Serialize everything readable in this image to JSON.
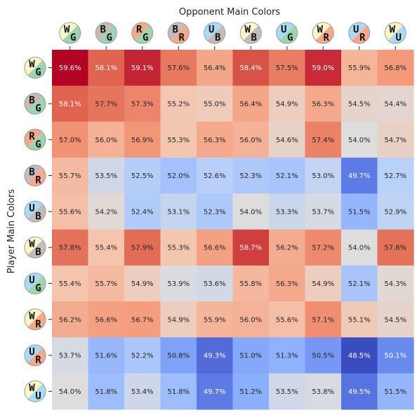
{
  "chart_data": {
    "type": "heatmap",
    "title": "Opponent Main Colors",
    "ylabel": "Player Main Colors",
    "x_categories": [
      {
        "top": "W",
        "bottom": "G"
      },
      {
        "top": "B",
        "bottom": "G"
      },
      {
        "top": "R",
        "bottom": "G"
      },
      {
        "top": "B",
        "bottom": "R"
      },
      {
        "top": "U",
        "bottom": "B"
      },
      {
        "top": "W",
        "bottom": "B"
      },
      {
        "top": "U",
        "bottom": "G"
      },
      {
        "top": "W",
        "bottom": "R"
      },
      {
        "top": "U",
        "bottom": "R"
      },
      {
        "top": "W",
        "bottom": "U"
      }
    ],
    "y_categories": [
      {
        "top": "W",
        "bottom": "G"
      },
      {
        "top": "B",
        "bottom": "G"
      },
      {
        "top": "R",
        "bottom": "G"
      },
      {
        "top": "B",
        "bottom": "R"
      },
      {
        "top": "U",
        "bottom": "B"
      },
      {
        "top": "W",
        "bottom": "B"
      },
      {
        "top": "U",
        "bottom": "G"
      },
      {
        "top": "W",
        "bottom": "R"
      },
      {
        "top": "U",
        "bottom": "R"
      },
      {
        "top": "W",
        "bottom": "U"
      }
    ],
    "values": [
      [
        59.6,
        58.1,
        59.1,
        57.6,
        56.4,
        58.4,
        57.5,
        59.0,
        55.9,
        56.8
      ],
      [
        58.1,
        57.7,
        57.3,
        55.2,
        55.0,
        56.4,
        54.9,
        56.3,
        54.5,
        54.4
      ],
      [
        57.0,
        56.0,
        56.9,
        55.3,
        56.3,
        56.0,
        54.6,
        57.4,
        54.0,
        54.7
      ],
      [
        55.7,
        53.5,
        52.5,
        52.0,
        52.6,
        52.3,
        52.1,
        53.0,
        49.7,
        52.7
      ],
      [
        55.6,
        54.2,
        52.4,
        53.1,
        52.3,
        54.0,
        53.3,
        53.7,
        51.5,
        52.9
      ],
      [
        57.8,
        55.4,
        57.9,
        55.3,
        56.6,
        58.7,
        56.2,
        57.2,
        54.0,
        57.8
      ],
      [
        55.4,
        55.7,
        54.9,
        53.9,
        53.6,
        55.8,
        56.3,
        54.9,
        52.1,
        54.3
      ],
      [
        56.2,
        56.6,
        56.7,
        54.9,
        55.9,
        56.0,
        55.6,
        57.1,
        55.1,
        54.5
      ],
      [
        53.7,
        51.6,
        52.2,
        50.8,
        49.3,
        51.0,
        51.3,
        50.5,
        48.5,
        50.1
      ],
      [
        54.0,
        51.8,
        53.4,
        51.8,
        49.7,
        51.2,
        53.5,
        53.8,
        49.5,
        51.5
      ]
    ],
    "value_suffix": "%",
    "colormap": "coolwarm",
    "vmin": 48.5,
    "vmax": 59.6,
    "center": 54.0,
    "mana_colors": {
      "W": "#fcf6c7",
      "U": "#a9dcf2",
      "B": "#c5bcb9",
      "R": "#f6a98a",
      "G": "#9dd5b0"
    }
  }
}
